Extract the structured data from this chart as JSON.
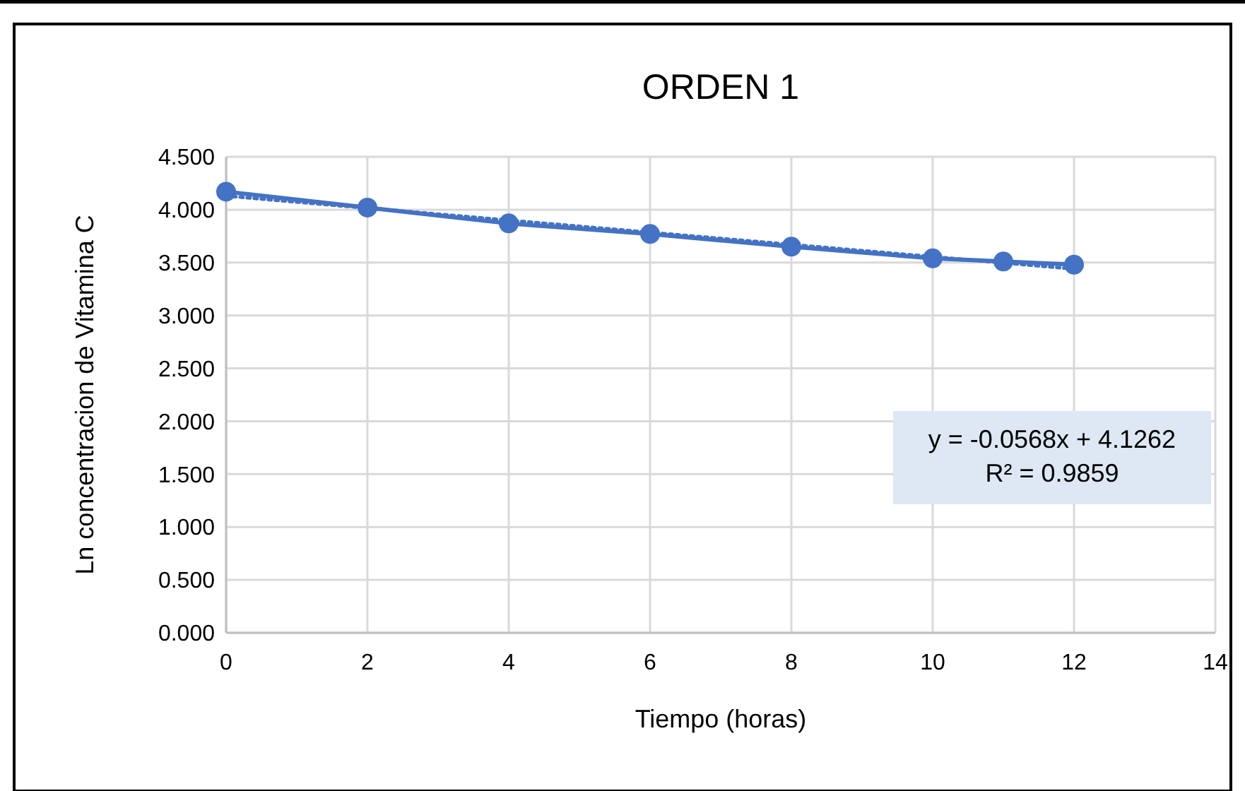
{
  "chart_data": {
    "type": "line",
    "title": "ORDEN 1",
    "xlabel": "Tiempo (horas)",
    "ylabel": "Ln concentracion de Vitamina C",
    "xlim": [
      0,
      14
    ],
    "xticks": [
      0,
      2,
      4,
      6,
      8,
      10,
      12,
      14
    ],
    "ylim": [
      0,
      4.5
    ],
    "yticks": [
      {
        "value": 0,
        "label": "0.000"
      },
      {
        "value": 0.5,
        "label": "0.500"
      },
      {
        "value": 1,
        "label": "1.000"
      },
      {
        "value": 1.5,
        "label": "1.500"
      },
      {
        "value": 2,
        "label": "2.000"
      },
      {
        "value": 2.5,
        "label": "2.500"
      },
      {
        "value": 3,
        "label": "3.000"
      },
      {
        "value": 3.5,
        "label": "3.500"
      },
      {
        "value": 4,
        "label": "4.000"
      },
      {
        "value": 4.5,
        "label": "4.500"
      }
    ],
    "grid": true,
    "series": [
      {
        "x": [
          0,
          2,
          4,
          6,
          8,
          10,
          11,
          12
        ],
        "values": [
          4.17,
          4.02,
          3.87,
          3.77,
          3.65,
          3.54,
          3.51,
          3.48
        ],
        "color": "#4472c4",
        "marker": "circle",
        "line_style": "solid"
      },
      {
        "type": "line",
        "x": [
          0,
          12
        ],
        "values": [
          4.13,
          3.44
        ],
        "color": "#4472c4",
        "marker": "none",
        "line_style": "dotted"
      }
    ],
    "annotations": [
      "y = -0.0568x + 4.1262",
      "R² = 0.9859"
    ]
  }
}
